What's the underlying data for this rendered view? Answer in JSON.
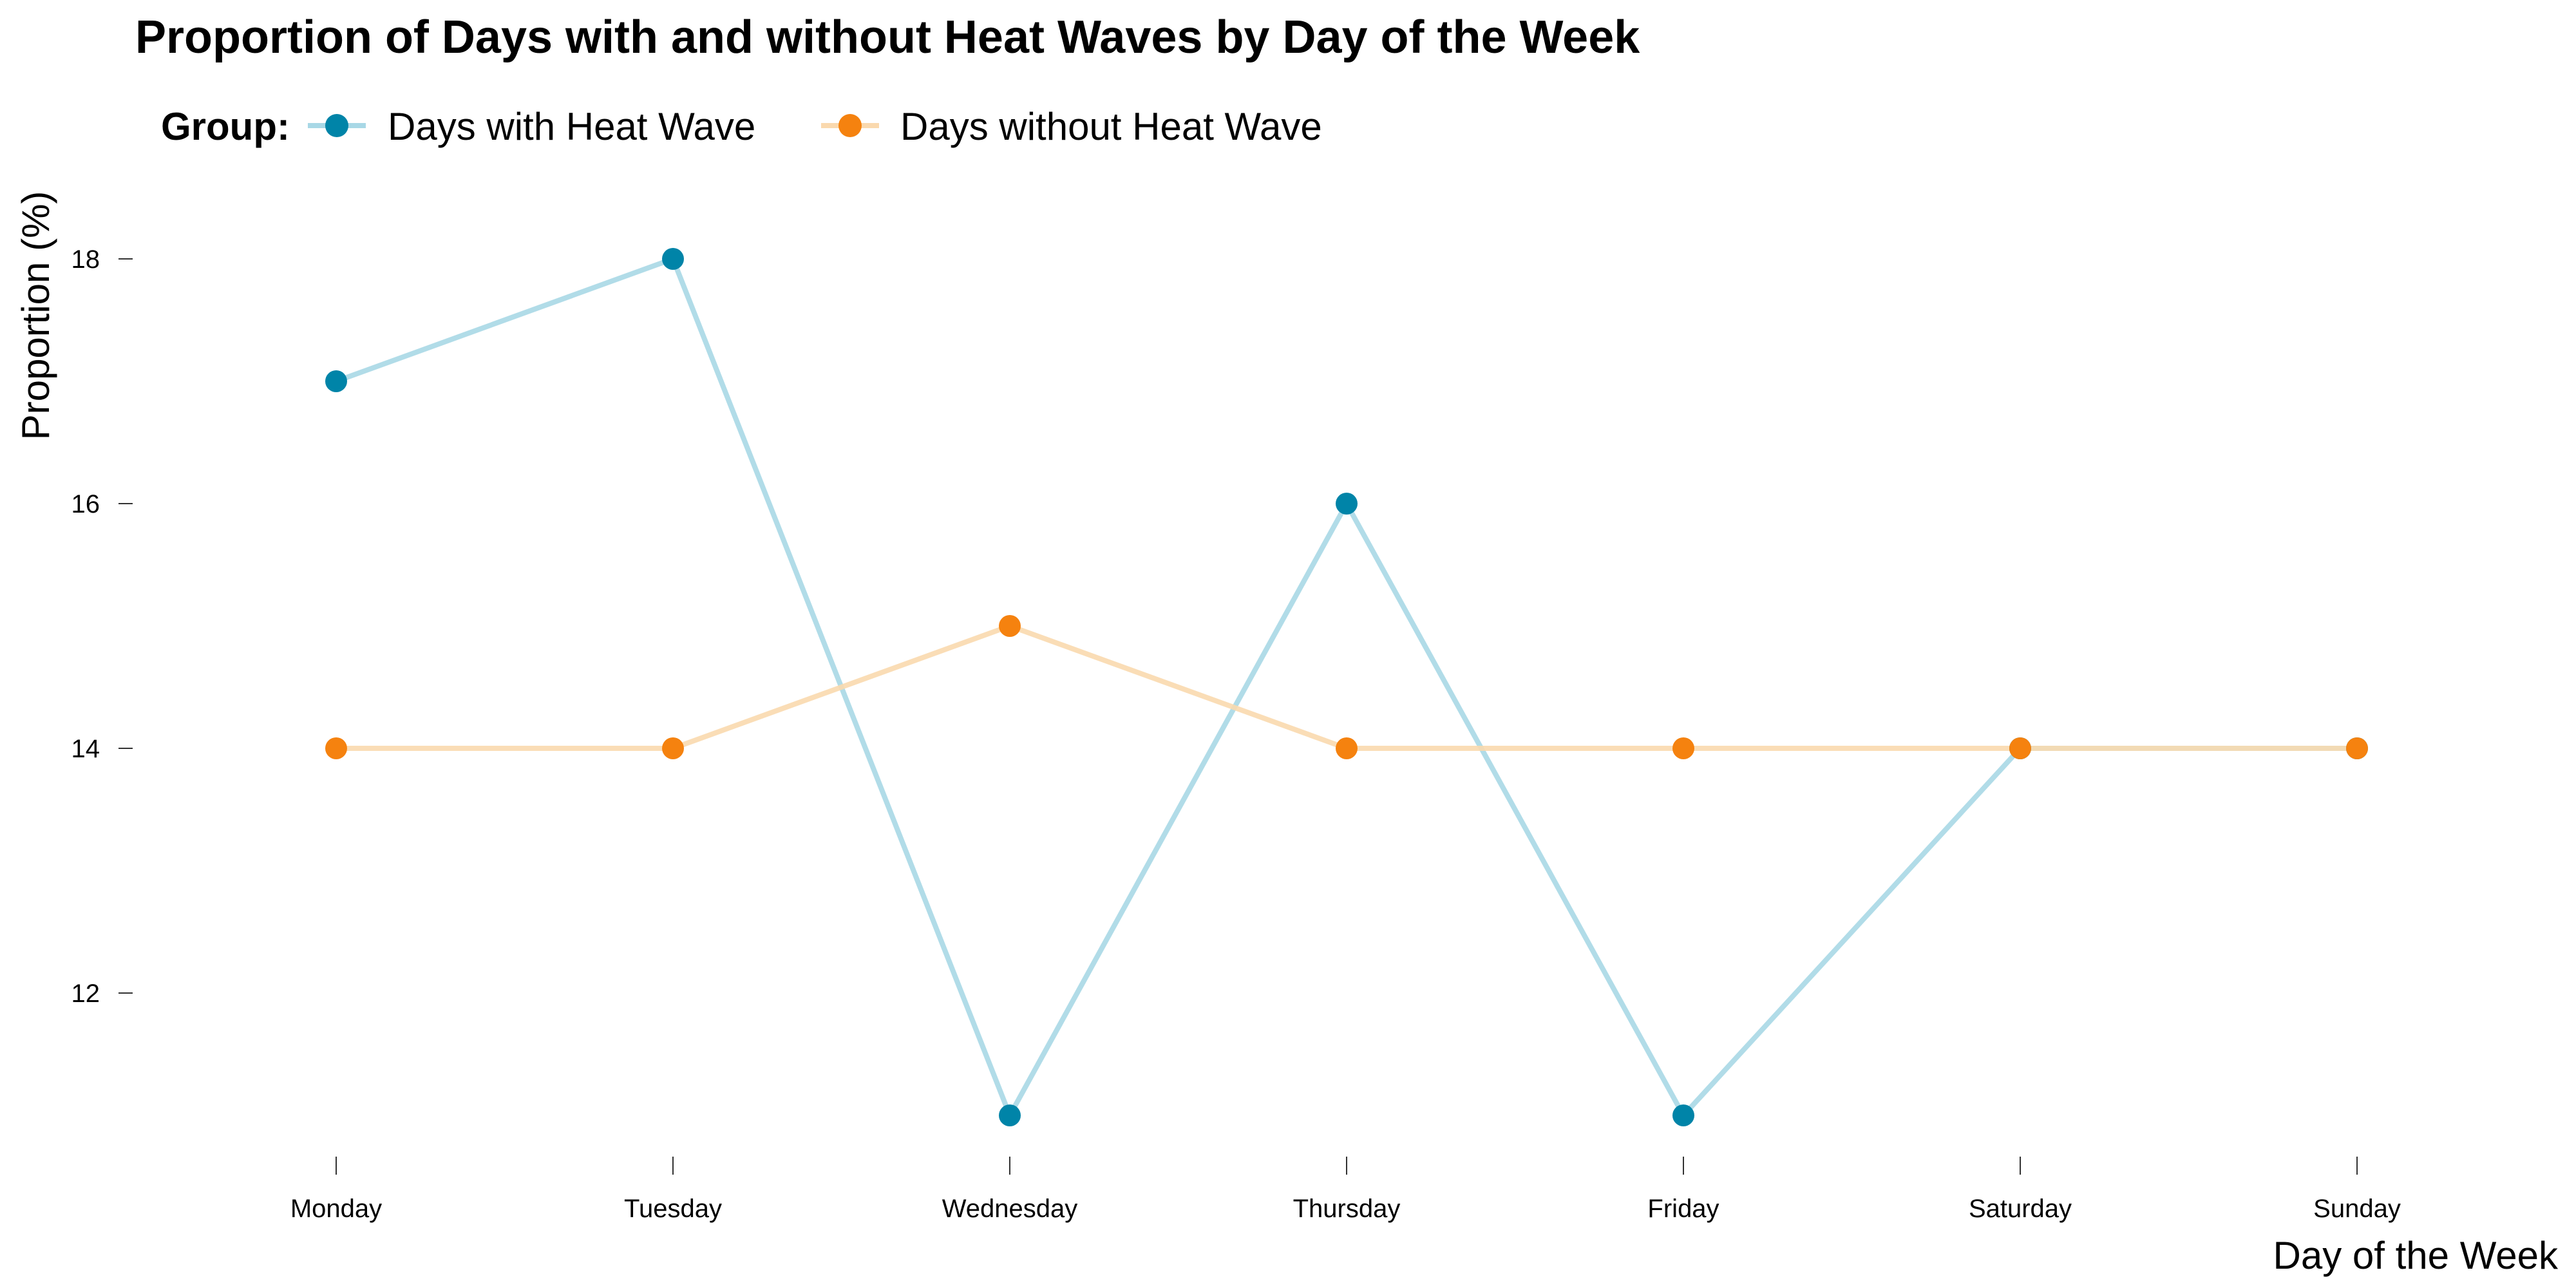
{
  "chart_data": {
    "type": "line",
    "title": "Proportion of Days with and without Heat Waves by Day of the Week",
    "xlabel": "Day of the Week",
    "ylabel": "Proportion (%)",
    "legend_title": "Group:",
    "legend_position": "top-left",
    "grid": false,
    "ylim": [
      10.7,
      18.9
    ],
    "yticks": [
      12,
      14,
      16,
      18
    ],
    "categories": [
      "Monday",
      "Tuesday",
      "Wednesday",
      "Thursday",
      "Friday",
      "Saturday",
      "Sunday"
    ],
    "series": [
      {
        "name": "Days with Heat Wave",
        "color": "#0084A8",
        "line_color": "#A8D8E6",
        "values": [
          17,
          18,
          11,
          16,
          11,
          14,
          14
        ]
      },
      {
        "name": "Days without Heat Wave",
        "color": "#F5820F",
        "line_color": "#FAD9AE",
        "values": [
          14,
          14,
          15,
          14,
          14,
          14,
          14
        ]
      }
    ]
  }
}
